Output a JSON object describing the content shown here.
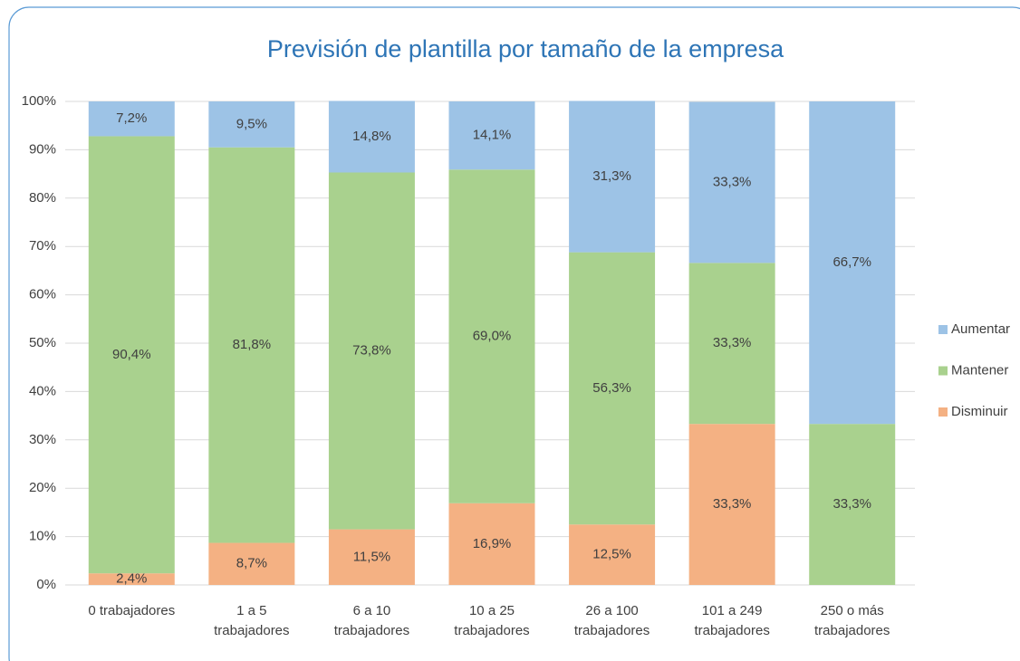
{
  "chart_data": {
    "type": "stacked_bar",
    "title": "Previsión de plantilla por tamaño de la empresa",
    "categories": [
      "0 trabajadores",
      "1 a 5 trabajadores",
      "6 a 10 trabajadores",
      "10 a 25 trabajadores",
      "26 a 100 trabajadores",
      "101 a 249 trabajadores",
      "250 o más trabajadores"
    ],
    "series": [
      {
        "name": "Aumentar",
        "color": "#9dc3e6",
        "values": [
          7.2,
          9.5,
          14.8,
          14.1,
          31.3,
          33.3,
          66.7
        ],
        "value_labels": [
          "7,2%",
          "9,5%",
          "14,8%",
          "14,1%",
          "31,3%",
          "33,3%",
          "66,7%"
        ]
      },
      {
        "name": "Mantener",
        "color": "#a9d18e",
        "values": [
          90.4,
          81.8,
          73.8,
          69.0,
          56.3,
          33.3,
          33.3
        ],
        "value_labels": [
          "90,4%",
          "81,8%",
          "73,8%",
          "69,0%",
          "56,3%",
          "33,3%",
          "33,3%"
        ]
      },
      {
        "name": "Disminuir",
        "color": "#f4b183",
        "values": [
          2.4,
          8.7,
          11.5,
          16.9,
          12.5,
          33.3,
          null
        ],
        "value_labels": [
          "2,4%",
          "8,7%",
          "11,5%",
          "16,9%",
          "12,5%",
          "33,3%",
          null
        ]
      }
    ],
    "ylim": [
      0,
      100
    ],
    "yticks": [
      {
        "value": 0,
        "label": "0%"
      },
      {
        "value": 10,
        "label": "10%"
      },
      {
        "value": 20,
        "label": "20%"
      },
      {
        "value": 30,
        "label": "30%"
      },
      {
        "value": 40,
        "label": "40%"
      },
      {
        "value": 50,
        "label": "50%"
      },
      {
        "value": 60,
        "label": "60%"
      },
      {
        "value": 70,
        "label": "70%"
      },
      {
        "value": 80,
        "label": "80%"
      },
      {
        "value": 90,
        "label": "90%"
      },
      {
        "value": 100,
        "label": "100%"
      }
    ],
    "grid": true,
    "legend": "right"
  }
}
